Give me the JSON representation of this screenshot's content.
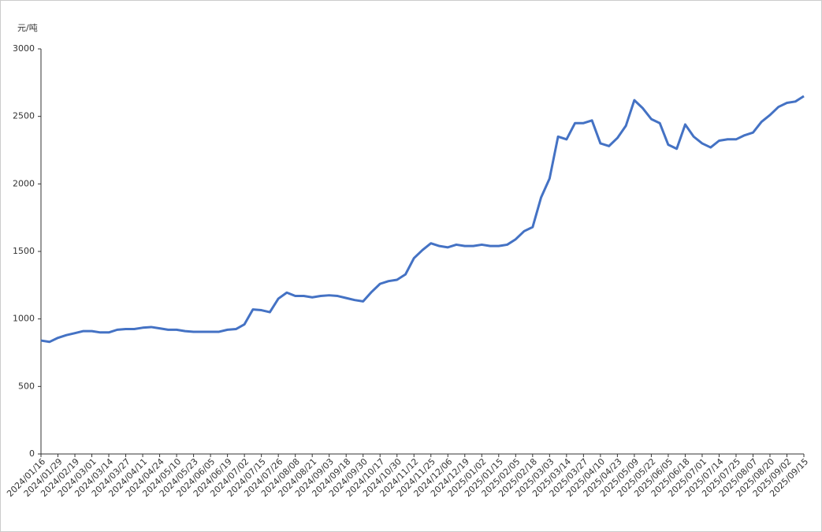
{
  "chart_data": {
    "type": "line",
    "y_label": "元/吨",
    "categories": [
      "2024/01/16",
      null,
      "2024/01/29",
      null,
      "2024/02/19",
      null,
      "2024/03/01",
      null,
      "2024/03/14",
      null,
      "2024/03/27",
      null,
      "2024/04/11",
      null,
      "2024/04/24",
      null,
      "2024/05/10",
      null,
      "2024/05/23",
      null,
      "2024/06/05",
      null,
      "2024/06/19",
      null,
      "2024/07/02",
      null,
      "2024/07/15",
      null,
      "2024/07/26",
      null,
      "2024/08/08",
      null,
      "2024/08/21",
      null,
      "2024/09/03",
      null,
      "2024/09/18",
      null,
      "2024/09/30",
      null,
      "2024/10/17",
      null,
      "2024/10/30",
      null,
      "2024/11/12",
      null,
      "2024/11/25",
      null,
      "2024/12/06",
      null,
      "2024/12/19",
      null,
      "2025/01/02",
      null,
      "2025/01/15",
      null,
      "2025/02/05",
      null,
      "2025/02/18",
      null,
      "2025/03/03",
      null,
      "2025/03/14",
      null,
      "2025/03/27",
      null,
      "2025/04/10",
      null,
      "2025/04/23",
      null,
      "2025/05/09",
      null,
      "2025/05/22",
      null,
      "2025/06/05",
      null,
      "2025/06/18",
      null,
      "2025/07/01",
      null,
      "2025/07/14",
      null,
      "2025/07/25",
      null,
      "2025/08/07",
      null,
      "2025/08/20",
      null,
      "2025/09/02",
      null,
      "2025/09/15"
    ],
    "series": [
      {
        "color": "#4472c4",
        "values": [
          840,
          830,
          860,
          880,
          895,
          910,
          910,
          900,
          900,
          920,
          925,
          925,
          935,
          940,
          930,
          920,
          920,
          910,
          905,
          905,
          905,
          905,
          920,
          925,
          960,
          1070,
          1065,
          1050,
          1150,
          1195,
          1170,
          1170,
          1160,
          1170,
          1175,
          1170,
          1155,
          1140,
          1130,
          1200,
          1260,
          1280,
          1290,
          1330,
          1450,
          1510,
          1560,
          1540,
          1530,
          1550,
          1540,
          1540,
          1550,
          1540,
          1540,
          1550,
          1590,
          1650,
          1680,
          1900,
          2040,
          2350,
          2330,
          2450,
          2450,
          2470,
          2300,
          2280,
          2340,
          2430,
          2620,
          2560,
          2480,
          2450,
          2290,
          2260,
          2440,
          2350,
          2300,
          2270,
          2320,
          2330,
          2330,
          2360,
          2380,
          2460,
          2510,
          2570,
          2600,
          2610,
          2650
        ]
      }
    ],
    "ylim": [
      0,
      3000
    ],
    "yticks": [
      0,
      500,
      1000,
      1500,
      2000,
      2500,
      3000
    ],
    "grid": false
  }
}
